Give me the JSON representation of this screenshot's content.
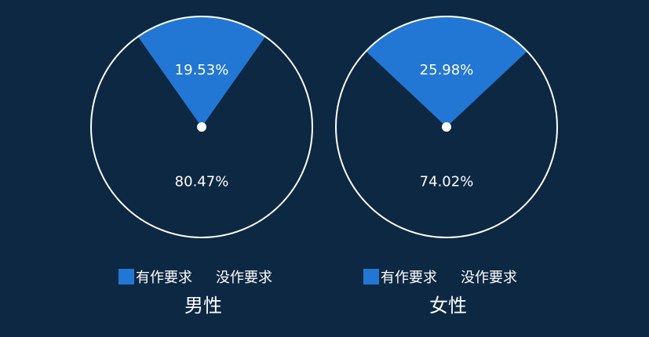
{
  "colors": {
    "background": "#0d2842",
    "slice_fill": "#2277d4",
    "outline": "#ffffff",
    "text": "#ffffff"
  },
  "chart_data": [
    {
      "type": "pie",
      "title": "男性",
      "legend": [
        "有作要求",
        "没作要求"
      ],
      "slices": [
        {
          "label": "有作要求",
          "value": 19.53,
          "display": "19.53%"
        },
        {
          "label": "没作要求",
          "value": 80.47,
          "display": "80.47%"
        }
      ]
    },
    {
      "type": "pie",
      "title": "女性",
      "legend": [
        "有作要求",
        "没作要求"
      ],
      "slices": [
        {
          "label": "有作要求",
          "value": 25.98,
          "display": "25.98%"
        },
        {
          "label": "没作要求",
          "value": 74.02,
          "display": "74.02%"
        }
      ]
    }
  ]
}
